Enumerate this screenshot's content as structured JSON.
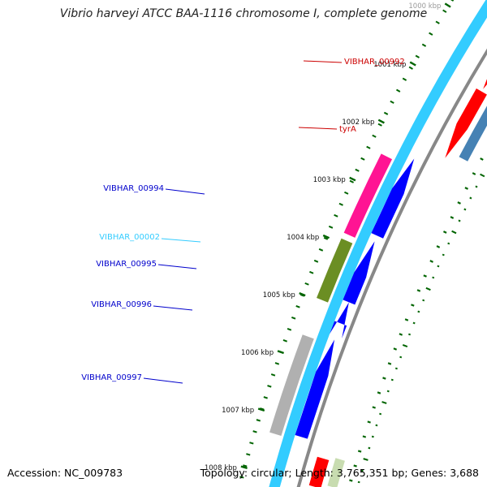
{
  "title": "Vibrio harveyi ATCC BAA-1116 chromosome I, complete genome",
  "accession": "Accession: NC_009783",
  "topology": "Topology: circular; Length: 3,765,351 bp; Genes: 3,688",
  "colors": {
    "forward_cds": "#ff0000",
    "forward_gene": "#4682b4",
    "reverse_cds": "#0000ff",
    "reverse_gene": "#33ccff",
    "pseudo_orange": "#ff1493",
    "olive": "#6b8e23",
    "grey": "#b0b0b0",
    "backbone": "#888888",
    "tick": "#006400"
  },
  "kbp_labels": [
    {
      "text": "1000 kbp",
      "kbp": 1000
    },
    {
      "text": "1001 kbp",
      "kbp": 1001
    },
    {
      "text": "1002 kbp",
      "kbp": 1002
    },
    {
      "text": "1003 kbp",
      "kbp": 1003
    },
    {
      "text": "1004 kbp",
      "kbp": 1004
    },
    {
      "text": "1005 kbp",
      "kbp": 1005
    },
    {
      "text": "1006 kbp",
      "kbp": 1006
    },
    {
      "text": "1007 kbp",
      "kbp": 1007
    },
    {
      "text": "1008 kbp",
      "kbp": 1008
    }
  ],
  "gene_labels": [
    {
      "text": "VIBHAR_00992",
      "color": "#cc0000"
    },
    {
      "text": "tyrA",
      "color": "#cc0000"
    },
    {
      "text": "VIBHAR_00994",
      "color": "#0000cc"
    },
    {
      "text": "VIBHAR_00002",
      "color": "#33ccff"
    },
    {
      "text": "VIBHAR_00995",
      "color": "#0000cc"
    },
    {
      "text": "VIBHAR_00996",
      "color": "#0000cc"
    },
    {
      "text": "VIBHAR_00997",
      "color": "#0000cc"
    }
  ]
}
